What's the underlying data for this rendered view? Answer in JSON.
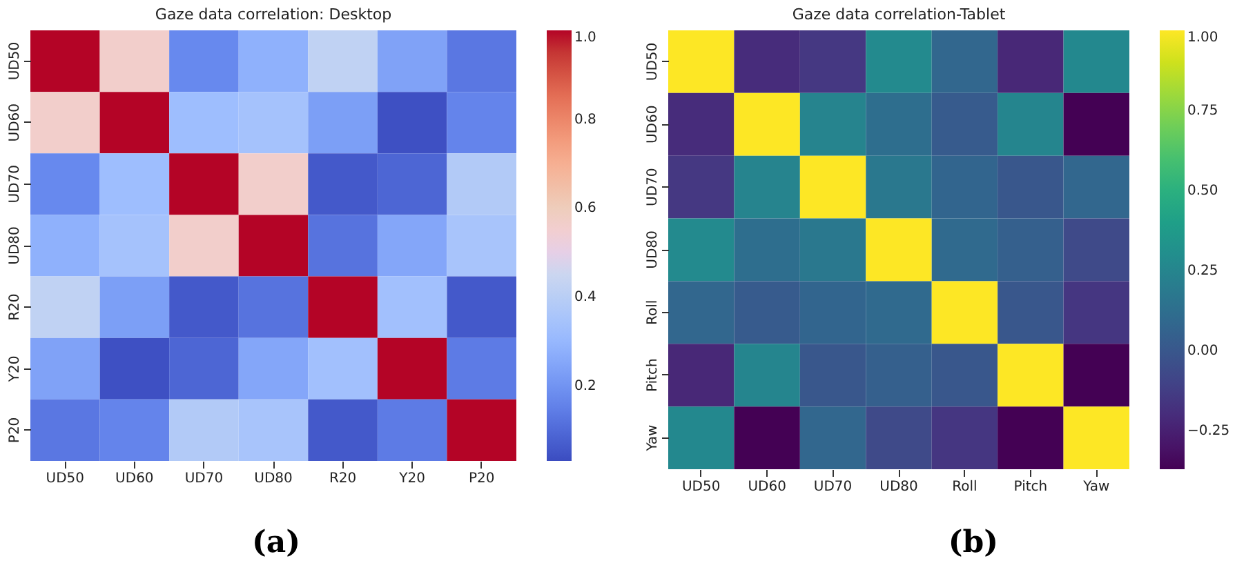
{
  "chart_data": [
    {
      "type": "heatmap",
      "title": "Gaze data correlation: Desktop",
      "categories": [
        "UD50",
        "UD60",
        "UD70",
        "UD80",
        "R20",
        "Y20",
        "P20"
      ],
      "y_categories": [
        "UD50",
        "UD60",
        "UD70",
        "UD80",
        "R20",
        "Y20",
        "P20"
      ],
      "cells": [
        [
          1,
          0.56,
          0.17,
          0.28,
          0.42,
          0.24,
          0.13
        ],
        [
          0.56,
          1,
          0.32,
          0.34,
          0.23,
          0.04,
          0.16
        ],
        [
          0.17,
          0.32,
          1,
          0.56,
          0.06,
          0.09,
          0.38
        ],
        [
          0.28,
          0.34,
          0.56,
          1,
          0.12,
          0.25,
          0.35
        ],
        [
          0.42,
          0.23,
          0.06,
          0.12,
          1,
          0.33,
          0.06
        ],
        [
          0.24,
          0.04,
          0.09,
          0.25,
          0.33,
          1,
          0.14
        ],
        [
          0.13,
          0.16,
          0.38,
          0.35,
          0.06,
          0.14,
          1
        ]
      ],
      "clim": [
        0.03,
        1
      ],
      "cticks": [
        0.2,
        0.4,
        0.6,
        0.8,
        {
          "value": 1,
          "label": "1.0"
        }
      ],
      "annotations": [
        "(a)"
      ]
    },
    {
      "type": "heatmap",
      "title": "Gaze data correlation-Tablet",
      "categories": [
        "UD50",
        "UD60",
        "UD70",
        "UD80",
        "Roll",
        "Pitch",
        "Yaw"
      ],
      "y_categories": [
        "UD50",
        "UD60",
        "UD70",
        "UD80",
        "Roll",
        "Pitch",
        "Yaw"
      ],
      "cells": [
        [
          1,
          -0.2,
          -0.15,
          0.28,
          0.08,
          -0.22,
          0.27
        ],
        [
          -0.2,
          1,
          0.24,
          0.12,
          0.02,
          0.25,
          -0.37
        ],
        [
          -0.15,
          0.24,
          1,
          0.18,
          0.07,
          0.0,
          0.08
        ],
        [
          0.28,
          0.12,
          0.18,
          1,
          0.1,
          0.04,
          -0.07
        ],
        [
          0.08,
          0.02,
          0.07,
          0.1,
          1,
          0.0,
          -0.16
        ],
        [
          -0.22,
          0.25,
          0.0,
          0.04,
          0.0,
          1,
          -0.37
        ],
        [
          0.27,
          -0.37,
          0.08,
          -0.07,
          -0.16,
          -0.37,
          1
        ]
      ],
      "clim": [
        -0.37,
        1
      ],
      "cticks": [
        {
          "value": -0.25,
          "label": "−0.25"
        },
        {
          "value": 0,
          "label": "0.00"
        },
        0.25,
        {
          "value": 0.5,
          "label": "0.50"
        },
        0.75,
        {
          "value": 1,
          "label": "1.00"
        }
      ],
      "annotations": [
        "(b)"
      ]
    }
  ]
}
